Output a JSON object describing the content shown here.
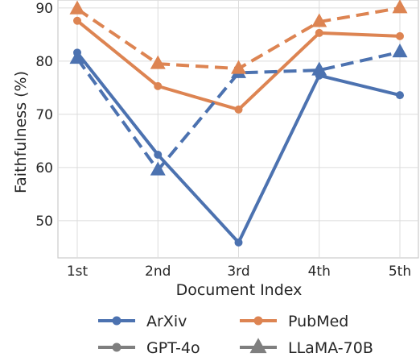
{
  "chart_data": {
    "type": "line",
    "categories": [
      "1st",
      "2nd",
      "3rd",
      "4th",
      "5th"
    ],
    "xlabel": "Document Index",
    "ylabel": "Faithfulness (%)",
    "yticks": [
      50,
      60,
      70,
      80,
      90
    ],
    "ylim": [
      43,
      91.5
    ],
    "grid": true,
    "legend_position": "bottom",
    "colors": {
      "ArXiv": "#4c72b0",
      "PubMed": "#dd8452",
      "neutral": "#7f7f7f"
    },
    "series": [
      {
        "name": "ArXiv",
        "dataset": "ArXiv",
        "model": "GPT-4o",
        "values": [
          81.6,
          62.4,
          45.9,
          77.3,
          73.6
        ]
      },
      {
        "name": "PubMed",
        "dataset": "PubMed",
        "model": "GPT-4o",
        "values": [
          87.6,
          75.3,
          70.9,
          85.3,
          84.7
        ]
      },
      {
        "name": "ArXiv",
        "dataset": "ArXiv",
        "model": "LLaMA-70B",
        "values": [
          80.5,
          59.5,
          77.8,
          78.3,
          81.7
        ]
      },
      {
        "name": "PubMed",
        "dataset": "PubMed",
        "model": "LLaMA-70B",
        "values": [
          89.8,
          79.5,
          78.6,
          87.4,
          90.0
        ]
      }
    ],
    "legend": [
      "ArXiv",
      "PubMed",
      "GPT-4o",
      "LLaMA-70B"
    ]
  }
}
